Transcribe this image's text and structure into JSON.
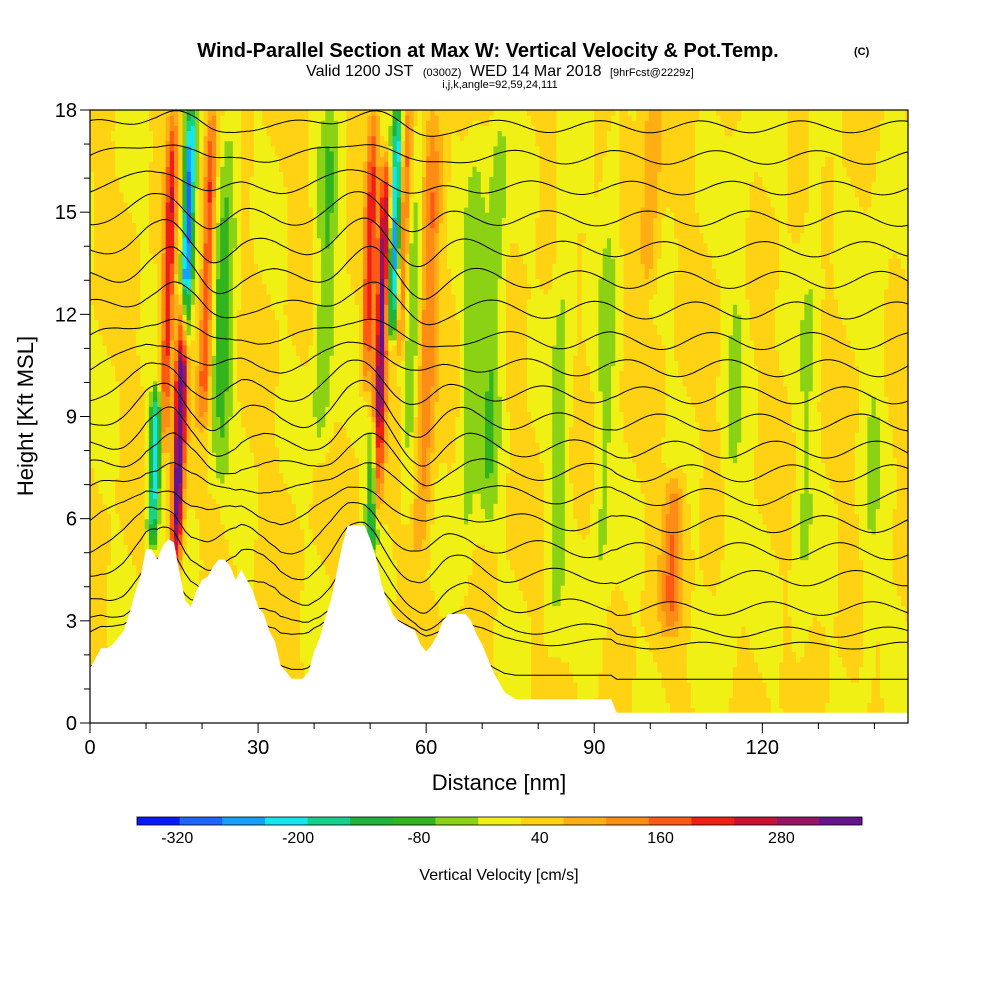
{
  "chart_data": {
    "type": "heatmap",
    "title": "Wind-Parallel Section at Max W: Vertical Velocity & Pot.Temp.",
    "title_mark": "(C)",
    "subtitle": {
      "valid_prefix": "Valid 1200 JST",
      "utc": "(0300Z)",
      "date": "WED 14 Mar 2018",
      "fcst": "[9hrFcst@2229z]"
    },
    "grid_info": "i,j,k,angle=92,59,24,111",
    "xlabel": "Distance [nm]",
    "ylabel": "Height [Kft MSL]",
    "xlim": [
      0,
      146
    ],
    "ylim": [
      0,
      18
    ],
    "x_ticks": [
      0,
      30,
      60,
      90,
      120
    ],
    "y_ticks": [
      0,
      3,
      6,
      9,
      12,
      15,
      18
    ],
    "colorbar": {
      "label": "Vertical Velocity [cm/s]",
      "tick_labels": [
        "-320",
        "-200",
        "-80",
        "40",
        "160",
        "280"
      ],
      "tick_values": [
        -320,
        -200,
        -80,
        40,
        160,
        280
      ],
      "range": [
        -360,
        360
      ],
      "colors": [
        "#0a19ff",
        "#1e64ff",
        "#14a0ff",
        "#14e6f0",
        "#14d28c",
        "#1eb43c",
        "#32b41e",
        "#8cd214",
        "#f0f014",
        "#ffd214",
        "#ffaf14",
        "#ff8c14",
        "#ff5a14",
        "#f01e14",
        "#c81432",
        "#961464",
        "#64148c"
      ]
    },
    "terrain": [
      [
        0,
        1.6
      ],
      [
        1,
        1.9
      ],
      [
        2,
        2.2
      ],
      [
        3,
        2.2
      ],
      [
        4,
        2.3
      ],
      [
        5,
        2.5
      ],
      [
        6,
        2.7
      ],
      [
        7,
        3.2
      ],
      [
        8,
        3.8
      ],
      [
        9,
        4.3
      ],
      [
        10,
        5.1
      ],
      [
        11,
        5.1
      ],
      [
        12,
        4.8
      ],
      [
        13,
        5.2
      ],
      [
        14,
        5.4
      ],
      [
        15,
        5.3
      ],
      [
        16,
        4.4
      ],
      [
        17,
        3.6
      ],
      [
        18,
        3.4
      ],
      [
        19,
        3.9
      ],
      [
        20,
        4.2
      ],
      [
        21,
        4.3
      ],
      [
        22,
        4.6
      ],
      [
        23,
        4.8
      ],
      [
        24,
        4.8
      ],
      [
        25,
        4.6
      ],
      [
        26,
        4.2
      ],
      [
        27,
        4.5
      ],
      [
        28,
        4.2
      ],
      [
        29,
        3.9
      ],
      [
        30,
        3.4
      ],
      [
        31,
        3.2
      ],
      [
        32,
        2.7
      ],
      [
        33,
        2.4
      ],
      [
        34,
        1.7
      ],
      [
        35,
        1.5
      ],
      [
        36,
        1.3
      ],
      [
        37,
        1.3
      ],
      [
        38,
        1.3
      ],
      [
        39,
        1.5
      ],
      [
        40,
        2.1
      ],
      [
        41,
        2.5
      ],
      [
        42,
        3.1
      ],
      [
        43,
        3.6
      ],
      [
        44,
        4.4
      ],
      [
        45,
        5.2
      ],
      [
        46,
        5.8
      ],
      [
        47,
        5.8
      ],
      [
        48,
        5.8
      ],
      [
        49,
        5.8
      ],
      [
        50,
        5.4
      ],
      [
        51,
        4.9
      ],
      [
        52,
        4.1
      ],
      [
        53,
        3.6
      ],
      [
        54,
        3.2
      ],
      [
        55,
        3.0
      ],
      [
        56,
        2.9
      ],
      [
        57,
        2.8
      ],
      [
        58,
        2.7
      ],
      [
        59,
        2.3
      ],
      [
        60,
        2.1
      ],
      [
        61,
        2.3
      ],
      [
        62,
        2.6
      ],
      [
        63,
        3.0
      ],
      [
        64,
        3.2
      ],
      [
        65,
        3.2
      ],
      [
        66,
        3.2
      ],
      [
        67,
        3.2
      ],
      [
        68,
        3.0
      ],
      [
        69,
        2.6
      ],
      [
        70,
        2.3
      ],
      [
        71,
        1.9
      ],
      [
        72,
        1.5
      ],
      [
        73,
        1.2
      ],
      [
        74,
        0.9
      ],
      [
        75,
        0.8
      ],
      [
        76,
        0.7
      ],
      [
        80,
        0.7
      ],
      [
        85,
        0.7
      ],
      [
        90,
        0.7
      ],
      [
        93,
        0.7
      ],
      [
        94,
        0.3
      ],
      [
        100,
        0.3
      ],
      [
        110,
        0.3
      ],
      [
        120,
        0.3
      ],
      [
        130,
        0.3
      ],
      [
        140,
        0.3
      ],
      [
        146,
        0.3
      ]
    ],
    "updraft_cores": [
      {
        "x": 16.0,
        "top": 12.5,
        "bottom": 4.6,
        "peak": 360
      },
      {
        "x": 14.0,
        "top": 18.0,
        "bottom": 8.0,
        "peak": 200
      },
      {
        "x": 21.0,
        "top": 18.0,
        "bottom": 9.0,
        "peak": 180
      },
      {
        "x": 52.0,
        "top": 16.5,
        "bottom": 6.2,
        "peak": 300
      },
      {
        "x": 50.0,
        "top": 18.0,
        "bottom": 10.0,
        "peak": 180
      },
      {
        "x": 56.0,
        "top": 18.0,
        "bottom": 11.0,
        "peak": 160
      },
      {
        "x": 60.0,
        "top": 18.0,
        "bottom": 5.0,
        "peak": 140
      },
      {
        "x": 104.0,
        "top": 7.0,
        "bottom": 3.0,
        "peak": 120
      },
      {
        "x": 100.0,
        "top": 18.0,
        "bottom": 13.0,
        "peak": 80
      }
    ],
    "downdraft_cores": [
      {
        "x": 17.5,
        "top": 18.0,
        "bottom": 11.0,
        "peak": -320
      },
      {
        "x": 11.5,
        "top": 9.5,
        "bottom": 5.5,
        "peak": -250
      },
      {
        "x": 54.5,
        "top": 18.0,
        "bottom": 11.5,
        "peak": -280
      },
      {
        "x": 50.5,
        "top": 8.5,
        "bottom": 5.5,
        "peak": -200
      },
      {
        "x": 24.0,
        "top": 18.0,
        "bottom": 7.0,
        "peak": -110
      },
      {
        "x": 42.0,
        "top": 18.0,
        "bottom": 8.0,
        "peak": -90
      },
      {
        "x": 58.0,
        "top": 18.0,
        "bottom": 6.0,
        "peak": -90
      },
      {
        "x": 72.0,
        "top": 18.0,
        "bottom": 5.5,
        "peak": -85
      },
      {
        "x": 68.0,
        "top": 18.0,
        "bottom": 3.5,
        "peak": -70
      },
      {
        "x": 84.0,
        "top": 18.0,
        "bottom": 2.0,
        "peak": -60
      },
      {
        "x": 92.0,
        "top": 18.0,
        "bottom": 1.0,
        "peak": -55
      },
      {
        "x": 115.0,
        "top": 18.0,
        "bottom": 0.8,
        "peak": -45
      },
      {
        "x": 128.0,
        "top": 18.0,
        "bottom": 0.5,
        "peak": -45
      },
      {
        "x": 140.0,
        "top": 18.0,
        "bottom": 0.5,
        "peak": -40
      }
    ],
    "theta_isentropes": [
      {
        "base": 1.2,
        "amp": 0.0
      },
      {
        "base": 2.2,
        "amp": 0.4
      },
      {
        "base": 2.6,
        "amp": 0.6
      },
      {
        "base": 3.3,
        "amp": 0.8
      },
      {
        "base": 4.2,
        "amp": 0.9
      },
      {
        "base": 5.0,
        "amp": 1.0
      },
      {
        "base": 5.8,
        "amp": 1.0
      },
      {
        "base": 6.6,
        "amp": 1.0
      },
      {
        "base": 7.3,
        "amp": 1.0
      },
      {
        "base": 8.0,
        "amp": 1.0
      },
      {
        "base": 8.8,
        "amp": 1.0
      },
      {
        "base": 9.6,
        "amp": 1.0
      },
      {
        "base": 10.4,
        "amp": 1.0
      },
      {
        "base": 11.2,
        "amp": 1.0
      },
      {
        "base": 12.1,
        "amp": 1.0
      },
      {
        "base": 13.0,
        "amp": 1.0
      },
      {
        "base": 13.9,
        "amp": 0.9
      },
      {
        "base": 14.8,
        "amp": 0.9
      },
      {
        "base": 15.7,
        "amp": 0.8
      },
      {
        "base": 16.6,
        "amp": 0.8
      },
      {
        "base": 17.5,
        "amp": 0.7
      }
    ]
  }
}
